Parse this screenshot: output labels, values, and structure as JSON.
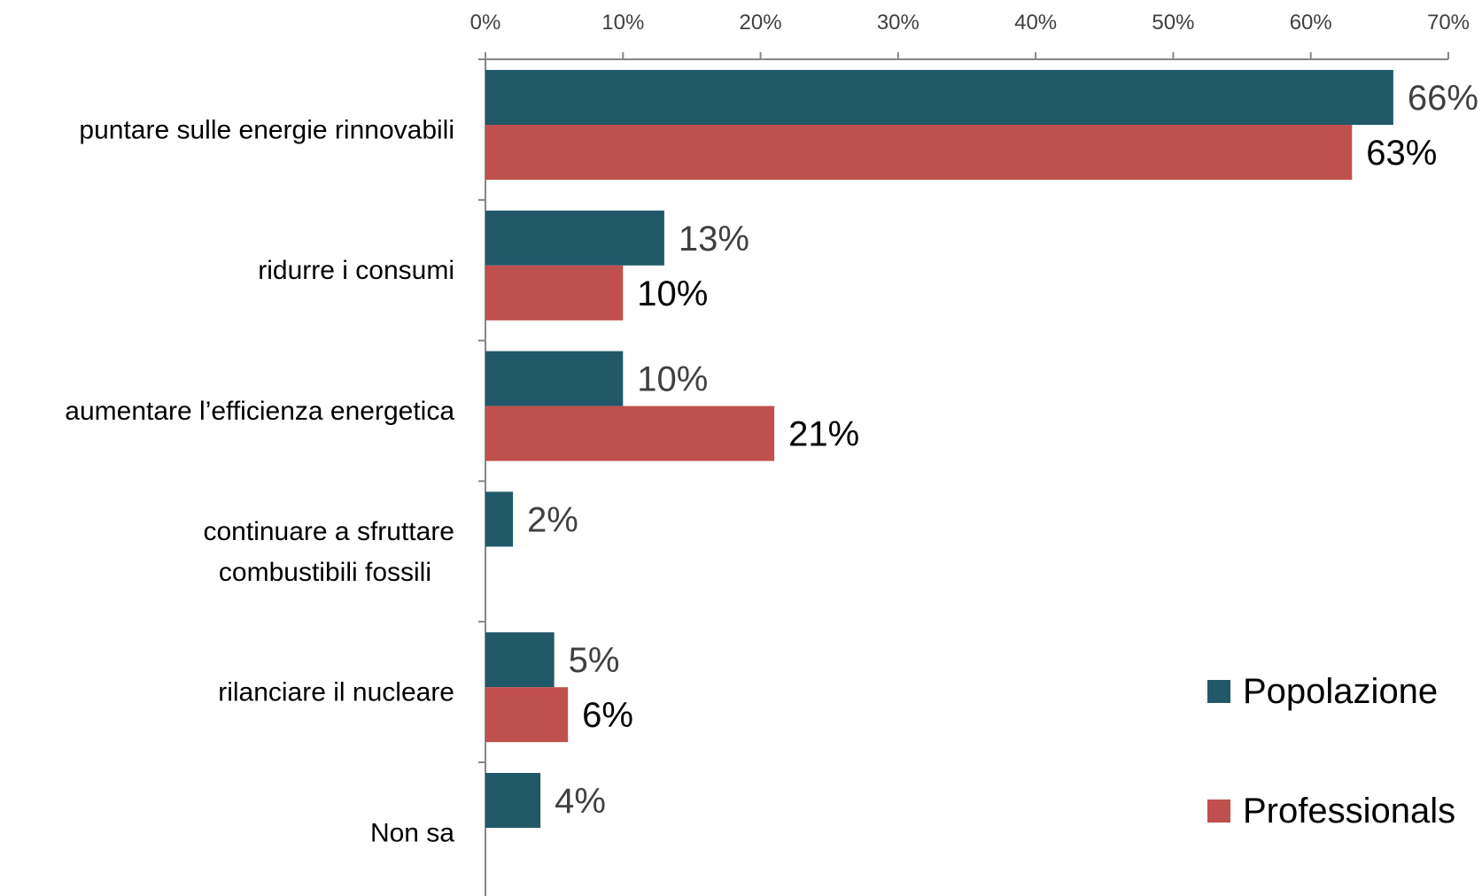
{
  "chart_data": {
    "type": "bar",
    "orientation": "horizontal",
    "categories": [
      [
        "puntare sulle energie rinnovabili"
      ],
      [
        "ridurre i consumi"
      ],
      [
        "aumentare l’efficienza energetica"
      ],
      [
        "continuare a sfruttare",
        "combustibili fossili"
      ],
      [
        "rilanciare il nucleare"
      ],
      [
        "Non sa"
      ]
    ],
    "series": [
      {
        "name": "Popolazione",
        "color": "#215968",
        "values": [
          66,
          13,
          10,
          2,
          5,
          4
        ],
        "labels": [
          "66%",
          "13%",
          "10%",
          "2%",
          "5%",
          "4%"
        ]
      },
      {
        "name": "Professionals",
        "color": "#C0504D",
        "values": [
          63,
          10,
          21,
          null,
          6,
          null
        ],
        "labels": [
          "63%",
          "10%",
          "21%",
          "",
          "6%",
          ""
        ]
      }
    ],
    "xlim": [
      0,
      70
    ],
    "xticks": [
      0,
      10,
      20,
      30,
      40,
      50,
      60,
      70
    ],
    "xtick_labels": [
      "0%",
      "10%",
      "20%",
      "30%",
      "40%",
      "50%",
      "60%",
      "70%"
    ],
    "x_axis_position": "top",
    "grid": false,
    "legend_position": "bottom-right"
  }
}
